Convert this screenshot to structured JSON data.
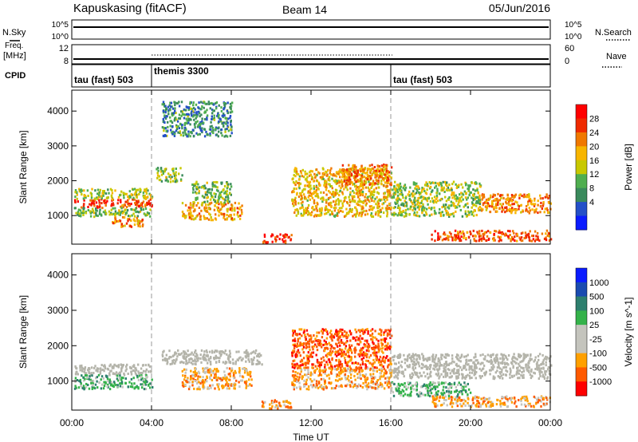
{
  "header": {
    "station": "Kapuskasing (fitACF)",
    "beam": "Beam 14",
    "date": "05/Jun/2016"
  },
  "summary": {
    "nsky_label": "N.Sky",
    "nsearch_label": "N.Search",
    "freq_label": "Freq.",
    "freq_unit": "[MHz]",
    "nave_label": "Nave",
    "cpid_label": "CPID",
    "left_ticks_noise": [
      "10^5",
      "10^0"
    ],
    "right_ticks_noise": [
      "10^5",
      "10^0"
    ],
    "left_ticks_freq": [
      "12",
      "8"
    ],
    "right_ticks_freq": [
      "60",
      "0"
    ]
  },
  "cpid_segments": [
    {
      "label": "tau (fast) 503",
      "start_hour": 0,
      "end_hour": 4
    },
    {
      "label": "themis 3300",
      "start_hour": 4,
      "end_hour": 16
    },
    {
      "label": "tau (fast) 503",
      "start_hour": 16,
      "end_hour": 24
    }
  ],
  "colors": {
    "power_scale": [
      "#0a1cff",
      "#2450c8",
      "#3a8a5c",
      "#4fae4f",
      "#c8c800",
      "#f7b500",
      "#f07800",
      "#ef2a00",
      "#ff0000"
    ],
    "velocity_scale": [
      "#ff0000",
      "#ff5a00",
      "#ffa000",
      "#c4c4bd",
      "#c4c4bd",
      "#34b24a",
      "#2d7f6e",
      "#1a4bb0",
      "#0a1cff"
    ],
    "ground_scatter": "#b4b4aa"
  },
  "chart_data": [
    {
      "type": "heatmap",
      "name": "power",
      "ylabel": "Slant Range [km]",
      "xlabel": "Time UT",
      "x_ticks": [
        "00:00",
        "04:00",
        "08:00",
        "12:00",
        "16:00",
        "20:00",
        "00:00"
      ],
      "y_ticks": [
        1000,
        2000,
        3000,
        4000
      ],
      "xlim_hours": [
        0,
        24
      ],
      "ylim_km": [
        180,
        4600
      ],
      "colorbar_label": "Power [dB]",
      "colorbar_ticks": [
        4,
        8,
        12,
        16,
        20,
        24,
        28
      ],
      "colorbar_range": [
        0,
        30
      ],
      "blobs": [
        {
          "t0": 0.1,
          "t1": 4.0,
          "r0": 1250,
          "r1": 1500,
          "value": 26
        },
        {
          "t0": 0.1,
          "t1": 4.0,
          "r0": 1500,
          "r1": 1800,
          "value": 14
        },
        {
          "t0": 0.1,
          "t1": 4.0,
          "r0": 1000,
          "r1": 1250,
          "value": 12
        },
        {
          "t0": 2.0,
          "t1": 3.6,
          "r0": 700,
          "r1": 1000,
          "value": 22
        },
        {
          "t0": 5.5,
          "t1": 8.5,
          "r0": 900,
          "r1": 1400,
          "value": 20
        },
        {
          "t0": 6.0,
          "t1": 8.0,
          "r0": 1400,
          "r1": 2000,
          "value": 12
        },
        {
          "t0": 4.2,
          "t1": 5.5,
          "r0": 2000,
          "r1": 2400,
          "value": 12
        },
        {
          "t0": 9.5,
          "t1": 11.0,
          "r0": 250,
          "r1": 500,
          "value": 28
        },
        {
          "t0": 11.0,
          "t1": 16.0,
          "r0": 1000,
          "r1": 2400,
          "value": 18
        },
        {
          "t0": 13.5,
          "t1": 16.0,
          "r0": 1900,
          "r1": 2500,
          "value": 22
        },
        {
          "t0": 16.0,
          "t1": 20.5,
          "r0": 1000,
          "r1": 2000,
          "value": 14
        },
        {
          "t0": 20.5,
          "t1": 24.0,
          "r0": 1100,
          "r1": 1650,
          "value": 22
        },
        {
          "t0": 18.0,
          "t1": 24.0,
          "r0": 300,
          "r1": 600,
          "value": 24
        },
        {
          "t0": 4.5,
          "t1": 8.0,
          "r0": 3300,
          "r1": 4300,
          "value": 8
        }
      ]
    },
    {
      "type": "heatmap",
      "name": "velocity",
      "ylabel": "Slant Range [km]",
      "xlabel": "Time UT",
      "x_ticks": [
        "00:00",
        "04:00",
        "08:00",
        "12:00",
        "16:00",
        "20:00",
        "00:00"
      ],
      "y_ticks": [
        1000,
        2000,
        3000,
        4000
      ],
      "xlim_hours": [
        0,
        24
      ],
      "ylim_km": [
        180,
        4600
      ],
      "colorbar_label": "Velocity [m s^-1]",
      "colorbar_ticks": [
        "1000",
        "500",
        "100",
        "25",
        "-25",
        "-100",
        "-500",
        "-1000"
      ],
      "blobs": [
        {
          "t0": 0.1,
          "t1": 4.0,
          "r0": 1200,
          "r1": 1500,
          "value": "ground"
        },
        {
          "t0": 0.1,
          "t1": 4.0,
          "r0": 800,
          "r1": 1200,
          "value": 100
        },
        {
          "t0": 5.5,
          "t1": 9.0,
          "r0": 800,
          "r1": 1400,
          "value": -100
        },
        {
          "t0": 4.5,
          "t1": 9.5,
          "r0": 1500,
          "r1": 1900,
          "value": "ground"
        },
        {
          "t0": 9.5,
          "t1": 11.0,
          "r0": 250,
          "r1": 500,
          "value": -100
        },
        {
          "t0": 11.0,
          "t1": 16.0,
          "r0": 1400,
          "r1": 2500,
          "value": -500
        },
        {
          "t0": 11.0,
          "t1": 16.0,
          "r0": 800,
          "r1": 1400,
          "value": -100
        },
        {
          "t0": 16.0,
          "t1": 24.0,
          "r0": 1100,
          "r1": 1800,
          "value": "ground"
        },
        {
          "t0": 18.0,
          "t1": 24.0,
          "r0": 300,
          "r1": 600,
          "value": -100
        },
        {
          "t0": 16.0,
          "t1": 20.0,
          "r0": 600,
          "r1": 1000,
          "value": 100
        }
      ]
    }
  ]
}
